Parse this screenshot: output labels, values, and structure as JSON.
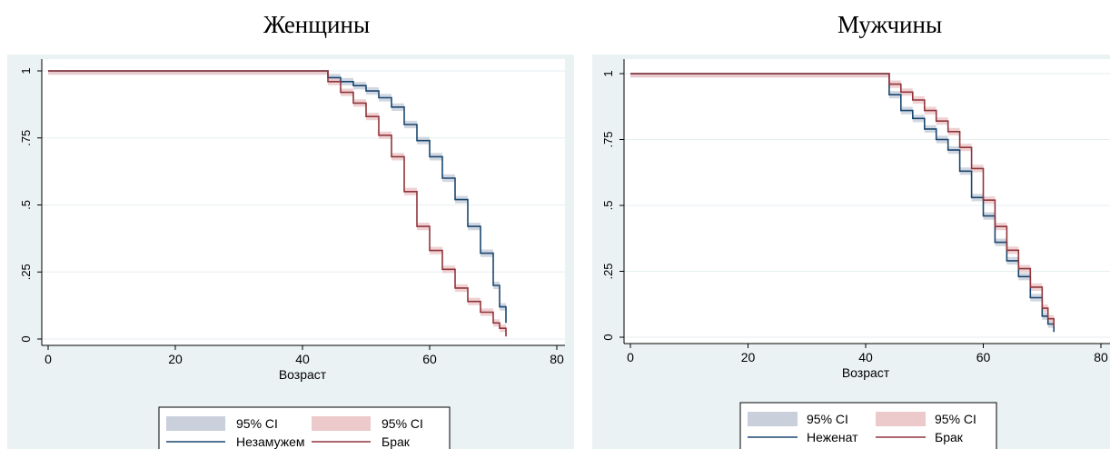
{
  "chart_data": [
    {
      "type": "line",
      "title": "Женщины",
      "xlabel": "Возраст",
      "ylabel": "",
      "xlim": [
        0,
        80
      ],
      "ylim": [
        0,
        1
      ],
      "x_ticks": [
        "0",
        "20",
        "40",
        "60",
        "80"
      ],
      "y_ticks": [
        "0",
        ".25",
        ".5",
        ".75",
        "1"
      ],
      "grid": true,
      "legend": {
        "placement": "bottom",
        "entries": [
          "95% CI",
          "95% CI",
          "Незамужем",
          "Брак"
        ]
      },
      "series": [
        {
          "name": "Незамужем",
          "color": "#1a476f",
          "ci_color": "#c9d0dc",
          "x": [
            0,
            44,
            44,
            46,
            48,
            50,
            52,
            54,
            56,
            58,
            60,
            62,
            64,
            66,
            68,
            70,
            71,
            72
          ],
          "y": [
            1,
            1,
            0.975,
            0.96,
            0.945,
            0.925,
            0.9,
            0.865,
            0.8,
            0.74,
            0.68,
            0.6,
            0.52,
            0.42,
            0.32,
            0.2,
            0.12,
            0.06
          ]
        },
        {
          "name": "Брак",
          "color": "#90353b",
          "ci_color": "#ecc9cb",
          "x": [
            0,
            44,
            44,
            46,
            48,
            50,
            52,
            54,
            56,
            58,
            60,
            62,
            64,
            66,
            68,
            70,
            71,
            72
          ],
          "y": [
            1,
            1,
            0.96,
            0.92,
            0.88,
            0.83,
            0.76,
            0.68,
            0.55,
            0.42,
            0.33,
            0.26,
            0.19,
            0.14,
            0.1,
            0.06,
            0.04,
            0.01
          ]
        }
      ]
    },
    {
      "type": "line",
      "title": "Мужчины",
      "xlabel": "Возраст",
      "ylabel": "",
      "xlim": [
        0,
        80
      ],
      "ylim": [
        0,
        1
      ],
      "x_ticks": [
        "0",
        "20",
        "40",
        "60",
        "80"
      ],
      "y_ticks": [
        "0",
        ".25",
        ".5",
        ".75",
        "1"
      ],
      "grid": true,
      "legend": {
        "placement": "bottom",
        "entries": [
          "95% CI",
          "95% CI",
          "Неженат",
          "Брак"
        ]
      },
      "series": [
        {
          "name": "Неженат",
          "color": "#1a476f",
          "ci_color": "#c9d0dc",
          "x": [
            0,
            44,
            44,
            46,
            48,
            50,
            52,
            54,
            56,
            58,
            60,
            62,
            64,
            66,
            68,
            70,
            71,
            72
          ],
          "y": [
            1,
            1,
            0.92,
            0.86,
            0.83,
            0.79,
            0.75,
            0.71,
            0.63,
            0.53,
            0.46,
            0.36,
            0.29,
            0.23,
            0.15,
            0.08,
            0.05,
            0.02
          ]
        },
        {
          "name": "Брак",
          "color": "#90353b",
          "ci_color": "#ecc9cb",
          "x": [
            0,
            44,
            44,
            46,
            48,
            50,
            52,
            54,
            56,
            58,
            60,
            62,
            64,
            66,
            68,
            70,
            71,
            72
          ],
          "y": [
            1,
            1,
            0.96,
            0.93,
            0.9,
            0.86,
            0.82,
            0.78,
            0.72,
            0.64,
            0.52,
            0.42,
            0.33,
            0.26,
            0.19,
            0.11,
            0.07,
            0.04
          ]
        }
      ]
    }
  ]
}
